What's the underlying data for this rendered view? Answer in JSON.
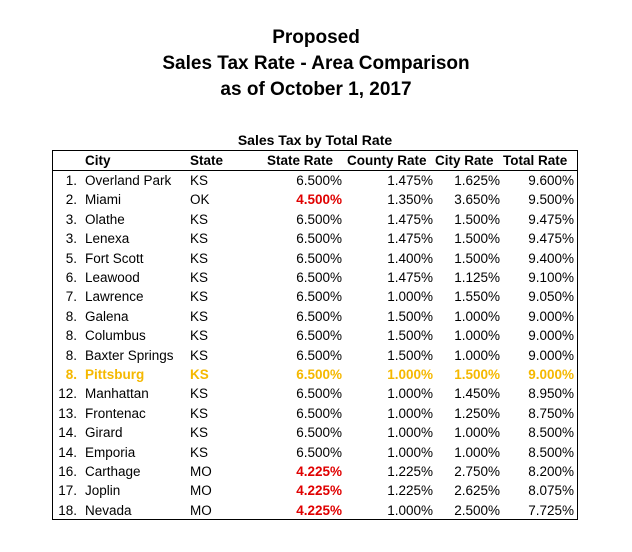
{
  "title_lines": [
    "Proposed",
    "Sales Tax Rate - Area Comparison",
    "as of October 1, 2017"
  ],
  "table_caption": "Sales Tax by Total Rate",
  "columns": {
    "city": "City",
    "state": "State",
    "state_rate": "State Rate",
    "county_rate": "County Rate",
    "city_rate": "City Rate",
    "total_rate": "Total Rate"
  },
  "colors": {
    "non_kansas_state_rate": "#e00000",
    "highlight_row": "#f5b800"
  },
  "rows": [
    {
      "rank": "1.",
      "city": "Overland Park",
      "state": "KS",
      "state_rate": "6.500%",
      "county_rate": "1.475%",
      "city_rate": "1.625%",
      "total_rate": "9.600%"
    },
    {
      "rank": "2.",
      "city": "Miami",
      "state": "OK",
      "state_rate": "4.500%",
      "county_rate": "1.350%",
      "city_rate": "3.650%",
      "total_rate": "9.500%",
      "state_rate_red": true
    },
    {
      "rank": "3.",
      "city": "Olathe",
      "state": "KS",
      "state_rate": "6.500%",
      "county_rate": "1.475%",
      "city_rate": "1.500%",
      "total_rate": "9.475%"
    },
    {
      "rank": "3.",
      "city": "Lenexa",
      "state": "KS",
      "state_rate": "6.500%",
      "county_rate": "1.475%",
      "city_rate": "1.500%",
      "total_rate": "9.475%"
    },
    {
      "rank": "5.",
      "city": "Fort Scott",
      "state": "KS",
      "state_rate": "6.500%",
      "county_rate": "1.400%",
      "city_rate": "1.500%",
      "total_rate": "9.400%"
    },
    {
      "rank": "6.",
      "city": "Leawood",
      "state": "KS",
      "state_rate": "6.500%",
      "county_rate": "1.475%",
      "city_rate": "1.125%",
      "total_rate": "9.100%"
    },
    {
      "rank": "7.",
      "city": "Lawrence",
      "state": "KS",
      "state_rate": "6.500%",
      "county_rate": "1.000%",
      "city_rate": "1.550%",
      "total_rate": "9.050%"
    },
    {
      "rank": "8.",
      "city": "Galena",
      "state": "KS",
      "state_rate": "6.500%",
      "county_rate": "1.500%",
      "city_rate": "1.000%",
      "total_rate": "9.000%"
    },
    {
      "rank": "8.",
      "city": "Columbus",
      "state": "KS",
      "state_rate": "6.500%",
      "county_rate": "1.500%",
      "city_rate": "1.000%",
      "total_rate": "9.000%"
    },
    {
      "rank": "8.",
      "city": "Baxter Springs",
      "state": "KS",
      "state_rate": "6.500%",
      "county_rate": "1.500%",
      "city_rate": "1.000%",
      "total_rate": "9.000%"
    },
    {
      "rank": "8.",
      "city": "Pittsburg",
      "state": "KS",
      "state_rate": "6.500%",
      "county_rate": "1.000%",
      "city_rate": "1.500%",
      "total_rate": "9.000%",
      "highlight": true
    },
    {
      "rank": "12.",
      "city": "Manhattan",
      "state": "KS",
      "state_rate": "6.500%",
      "county_rate": "1.000%",
      "city_rate": "1.450%",
      "total_rate": "8.950%"
    },
    {
      "rank": "13.",
      "city": "Frontenac",
      "state": "KS",
      "state_rate": "6.500%",
      "county_rate": "1.000%",
      "city_rate": "1.250%",
      "total_rate": "8.750%"
    },
    {
      "rank": "14.",
      "city": "Girard",
      "state": "KS",
      "state_rate": "6.500%",
      "county_rate": "1.000%",
      "city_rate": "1.000%",
      "total_rate": "8.500%"
    },
    {
      "rank": "14.",
      "city": "Emporia",
      "state": "KS",
      "state_rate": "6.500%",
      "county_rate": "1.000%",
      "city_rate": "1.000%",
      "total_rate": "8.500%"
    },
    {
      "rank": "16.",
      "city": "Carthage",
      "state": "MO",
      "state_rate": "4.225%",
      "county_rate": "1.225%",
      "city_rate": "2.750%",
      "total_rate": "8.200%",
      "state_rate_red": true
    },
    {
      "rank": "17.",
      "city": "Joplin",
      "state": "MO",
      "state_rate": "4.225%",
      "county_rate": "1.225%",
      "city_rate": "2.625%",
      "total_rate": "8.075%",
      "state_rate_red": true
    },
    {
      "rank": "18.",
      "city": "Nevada",
      "state": "MO",
      "state_rate": "4.225%",
      "county_rate": "1.000%",
      "city_rate": "2.500%",
      "total_rate": "7.725%",
      "state_rate_red": true
    }
  ]
}
